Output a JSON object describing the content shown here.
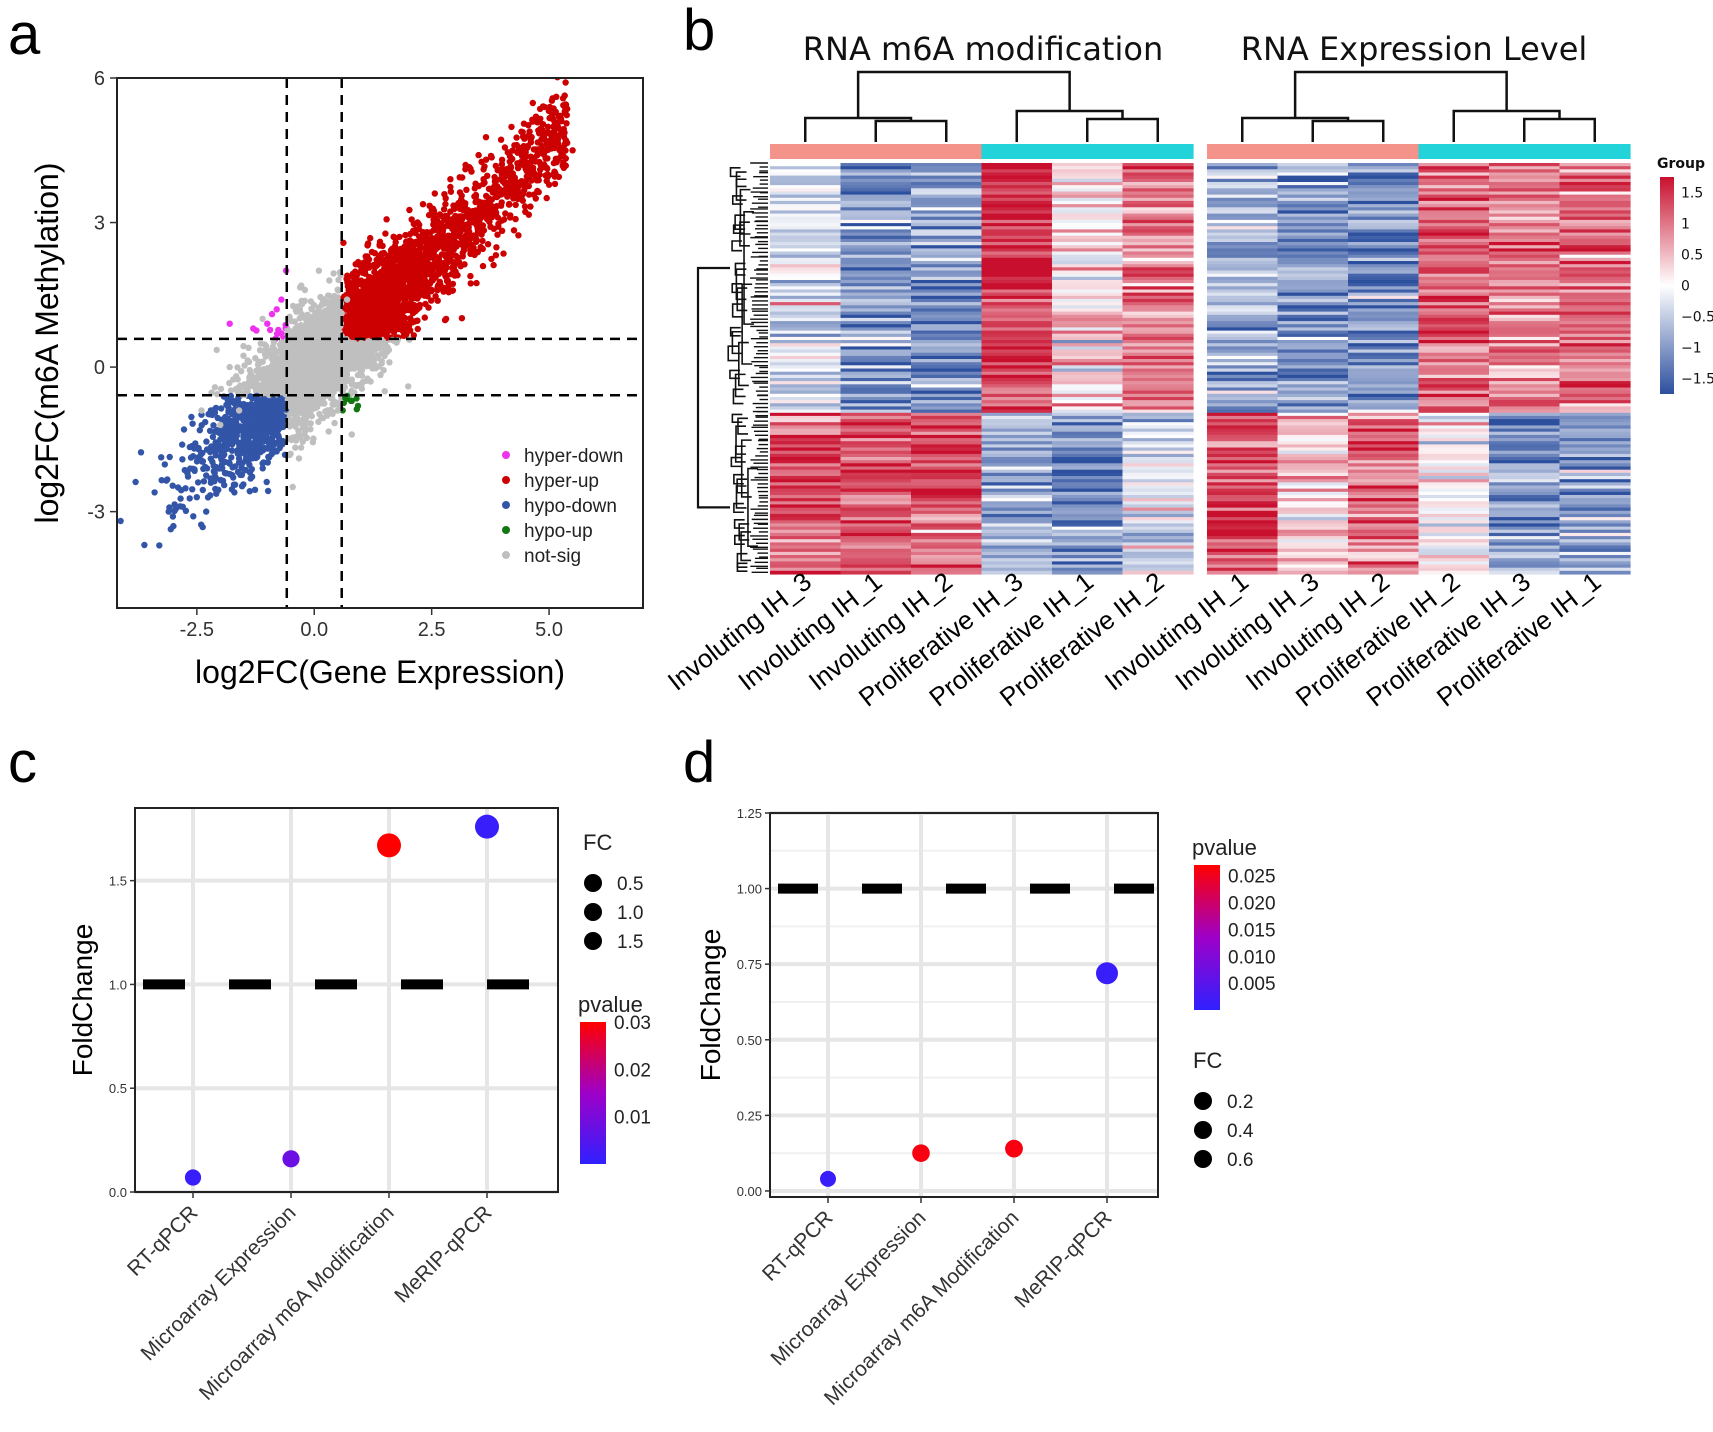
{
  "panels": {
    "a": {
      "label": "a"
    },
    "b": {
      "label": "b"
    },
    "c": {
      "label": "c"
    },
    "d": {
      "label": "d"
    }
  },
  "chart_data": [
    {
      "id": "a",
      "type": "scatter",
      "xlabel": "log2FC(Gene Expression)",
      "ylabel": "log2FC(m6A Methylation)",
      "xlim": [
        -4.2,
        7.0
      ],
      "ylim": [
        -5.0,
        6.0
      ],
      "x_ticks": [
        -2.5,
        0.0,
        2.5,
        5.0
      ],
      "x_tick_labels": [
        "-2.5",
        "0.0",
        "2.5",
        "5.0"
      ],
      "y_ticks": [
        -3,
        0,
        3,
        6
      ],
      "y_tick_labels": [
        "-3",
        "0",
        "3",
        "6"
      ],
      "thresholds": {
        "x": [
          -0.585,
          0.585
        ],
        "y": [
          -0.585,
          0.585
        ]
      },
      "grid": false,
      "legend_position": "bottom-right",
      "series": [
        {
          "name": "not-sig",
          "color": "#bfbfbf",
          "points": [
            [
              -2.0,
              -1.2
            ],
            [
              -1.6,
              -0.9
            ],
            [
              -1.3,
              -0.4
            ],
            [
              -1.0,
              -0.2
            ],
            [
              -0.8,
              0.1
            ],
            [
              -0.5,
              0.3
            ],
            [
              -0.3,
              0.0
            ],
            [
              0.0,
              0.2
            ],
            [
              0.2,
              -0.1
            ],
            [
              0.4,
              0.4
            ],
            [
              0.6,
              0.2
            ],
            [
              0.9,
              0.0
            ],
            [
              1.2,
              -0.3
            ],
            [
              1.5,
              -0.5
            ],
            [
              1.0,
              0.5
            ],
            [
              0.3,
              1.2
            ],
            [
              -0.2,
              1.6
            ],
            [
              0.1,
              2.0
            ],
            [
              -0.6,
              -0.5
            ],
            [
              -1.8,
              0.0
            ],
            [
              -1.4,
              0.4
            ],
            [
              0.5,
              -0.9
            ],
            [
              0.8,
              -1.4
            ],
            [
              0.2,
              -0.5
            ],
            [
              -0.4,
              -1.0
            ],
            [
              1.6,
              0.1
            ],
            [
              2.0,
              -0.4
            ],
            [
              -2.4,
              -0.9
            ],
            [
              -1.1,
              1.0
            ],
            [
              0.7,
              1.4
            ]
          ]
        },
        {
          "name": "hyper-up",
          "color": "#cc0000",
          "points": [
            [
              0.8,
              1.0
            ],
            [
              1.2,
              1.5
            ],
            [
              1.6,
              2.0
            ],
            [
              2.0,
              2.4
            ],
            [
              2.4,
              2.8
            ],
            [
              2.8,
              3.1
            ],
            [
              3.2,
              3.4
            ],
            [
              3.6,
              3.8
            ],
            [
              4.0,
              4.1
            ],
            [
              4.4,
              4.5
            ],
            [
              4.8,
              4.9
            ],
            [
              5.2,
              5.2
            ],
            [
              1.0,
              2.0
            ],
            [
              1.4,
              2.6
            ],
            [
              2.2,
              3.0
            ],
            [
              2.6,
              2.2
            ],
            [
              3.0,
              2.6
            ],
            [
              3.4,
              3.0
            ],
            [
              1.8,
              1.2
            ],
            [
              2.5,
              1.6
            ],
            [
              3.8,
              3.2
            ],
            [
              4.2,
              3.6
            ],
            [
              4.6,
              4.0
            ],
            [
              5.0,
              4.6
            ],
            [
              5.5,
              4.5
            ],
            [
              1.1,
              0.8
            ],
            [
              1.5,
              1.0
            ],
            [
              2.9,
              3.9
            ],
            [
              3.5,
              4.4
            ],
            [
              4.9,
              5.4
            ]
          ]
        },
        {
          "name": "hypo-down",
          "color": "#3355a8",
          "points": [
            [
              -0.8,
              -0.8
            ],
            [
              -1.0,
              -1.2
            ],
            [
              -1.3,
              -1.6
            ],
            [
              -1.6,
              -1.9
            ],
            [
              -1.9,
              -2.2
            ],
            [
              -2.2,
              -2.4
            ],
            [
              -2.5,
              -2.7
            ],
            [
              -2.8,
              -2.9
            ],
            [
              -3.1,
              -3.0
            ],
            [
              -3.3,
              -3.7
            ],
            [
              -1.5,
              -1.1
            ],
            [
              -2.0,
              -1.5
            ],
            [
              -2.7,
              -2.2
            ],
            [
              -3.4,
              -2.6
            ],
            [
              -1.1,
              -2.0
            ],
            [
              -1.7,
              -2.6
            ],
            [
              -2.3,
              -3.0
            ],
            [
              -0.9,
              -1.5
            ],
            [
              -2.9,
              -2.5
            ],
            [
              -3.0,
              -3.3
            ]
          ]
        },
        {
          "name": "hyper-down",
          "color": "#ee33ee",
          "points": [
            [
              -0.7,
              1.4
            ],
            [
              -0.8,
              1.2
            ],
            [
              -1.0,
              0.9
            ],
            [
              -1.3,
              0.8
            ],
            [
              -0.9,
              1.1
            ],
            [
              -0.6,
              2.0
            ],
            [
              -1.8,
              0.9
            ],
            [
              -0.7,
              0.7
            ]
          ]
        },
        {
          "name": "hypo-up",
          "color": "#117711",
          "points": [
            [
              0.7,
              -0.6
            ],
            [
              0.9,
              -0.65
            ],
            [
              0.8,
              -0.7
            ]
          ]
        }
      ],
      "legend": [
        "hyper-down",
        "hyper-up",
        "hypo-down",
        "hypo-up",
        "not-sig"
      ]
    },
    {
      "id": "b",
      "type": "heatmap",
      "titles": [
        "RNA m6A modification",
        "RNA Expression Level"
      ],
      "columns_left": [
        "Involuting IH_3",
        "Involuting IH_1",
        "Involuting IH_2",
        "Proliferative IH_3",
        "Proliferative IH_1",
        "Proliferative IH_2"
      ],
      "columns_right": [
        "Involuting IH_1",
        "Involuting IH_3",
        "Involuting IH_2",
        "Proliferative IH_2",
        "Proliferative IH_3",
        "Proliferative IH_1"
      ],
      "group_colors": {
        "Involuting": "#f4938a",
        "Proliferative": "#22d3d9"
      },
      "colorbar_title": "Group",
      "colorbar_ticks": [
        1.5,
        1,
        0.5,
        0,
        -0.5,
        -1,
        -1.5
      ],
      "colorbar_labels": [
        "1.5",
        "1",
        "0.5",
        "0",
        "−0.5",
        "−1",
        "−1.5"
      ],
      "value_range": [
        -1.75,
        1.75
      ],
      "row_cluster_split": 0.605,
      "block_means_left": [
        [
          -0.4,
          -1.0,
          -1.0,
          1.6,
          0.2,
          0.9
        ],
        [
          1.1,
          1.3,
          1.3,
          -0.8,
          -1.1,
          -0.3
        ]
      ],
      "block_means_right": [
        [
          -0.7,
          -1.1,
          -1.0,
          1.1,
          0.9,
          1.2
        ],
        [
          1.3,
          0.4,
          1.0,
          -0.1,
          -1.1,
          -1.0
        ]
      ]
    },
    {
      "id": "c",
      "type": "scatter",
      "xlabel": "",
      "ylabel": "FoldChange",
      "categories": [
        "RT-qPCR",
        "Microarray Expression",
        "Microarray m6A Modification",
        "MeRIP-qPCR"
      ],
      "ylim": [
        0,
        1.85
      ],
      "y_ticks": [
        0.0,
        0.5,
        1.0,
        1.5
      ],
      "y_tick_labels": [
        "0.0",
        "0.5",
        "1.0",
        "1.5"
      ],
      "reference_line": 1.0,
      "points": [
        {
          "category": "RT-qPCR",
          "fc": 0.07,
          "pvalue": 0.001
        },
        {
          "category": "Microarray Expression",
          "fc": 0.16,
          "pvalue": 0.008
        },
        {
          "category": "Microarray m6A Modification",
          "fc": 1.67,
          "pvalue": 0.03
        },
        {
          "category": "MeRIP-qPCR",
          "fc": 1.76,
          "pvalue": 0.001
        }
      ],
      "size_legend_title": "FC",
      "size_legend": [
        0.5,
        1.0,
        1.5
      ],
      "size_legend_labels": [
        "0.5",
        "1.0",
        "1.5"
      ],
      "color_legend_title": "pvalue",
      "color_range": [
        0.0,
        0.03
      ],
      "color_legend_labels": [
        "0.03",
        "0.02",
        "0.01"
      ],
      "color_legend_values": [
        0.03,
        0.02,
        0.01
      ],
      "grid": true
    },
    {
      "id": "d",
      "type": "scatter",
      "xlabel": "",
      "ylabel": "FoldChange",
      "categories": [
        "RT-qPCR",
        "Microarray Expression",
        "Microarray m6A Modification",
        "MeRIP-qPCR"
      ],
      "ylim": [
        -0.02,
        1.25
      ],
      "y_ticks": [
        0.0,
        0.25,
        0.5,
        0.75,
        1.0,
        1.25
      ],
      "y_tick_labels": [
        "0.00",
        "0.25",
        "0.50",
        "0.75",
        "1.00",
        "1.25"
      ],
      "reference_line": 1.0,
      "points": [
        {
          "category": "RT-qPCR",
          "fc": 0.04,
          "pvalue": 0.001
        },
        {
          "category": "Microarray Expression",
          "fc": 0.125,
          "pvalue": 0.026
        },
        {
          "category": "Microarray m6A Modification",
          "fc": 0.14,
          "pvalue": 0.026
        },
        {
          "category": "MeRIP-qPCR",
          "fc": 0.72,
          "pvalue": 0.001
        }
      ],
      "size_legend_title": "FC",
      "size_legend": [
        0.2,
        0.4,
        0.6
      ],
      "size_legend_labels": [
        "0.2",
        "0.4",
        "0.6"
      ],
      "color_legend_title": "pvalue",
      "color_range": [
        0.0,
        0.027
      ],
      "color_legend_labels": [
        "0.025",
        "0.020",
        "0.015",
        "0.010",
        "0.005"
      ],
      "color_legend_values": [
        0.025,
        0.02,
        0.015,
        0.01,
        0.005
      ],
      "grid": true
    }
  ]
}
